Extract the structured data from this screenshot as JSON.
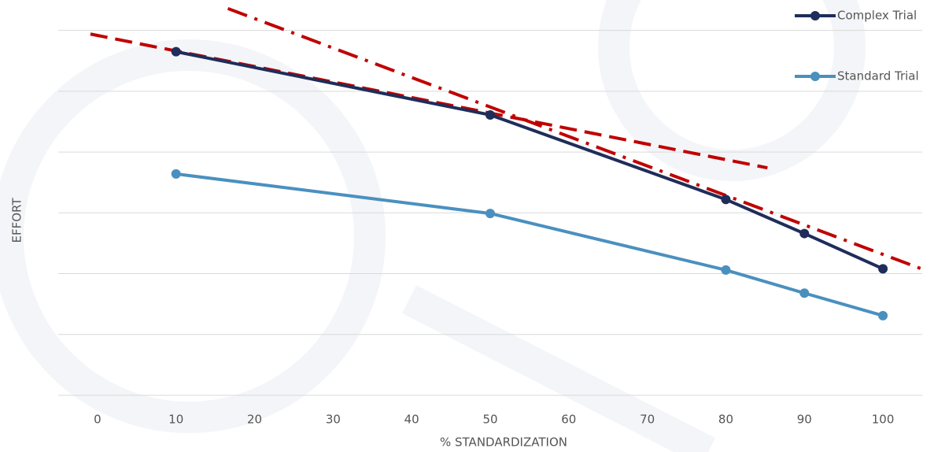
{
  "chart_data": {
    "type": "line",
    "x_label": "% STANDARDIZATION",
    "y_label": "EFFORT",
    "xlim": [
      -5,
      105
    ],
    "xticks": [
      0,
      10,
      20,
      30,
      40,
      50,
      60,
      70,
      80,
      90,
      100
    ],
    "ylim": [
      0,
      6.5
    ],
    "yticks": [
      0,
      1,
      2,
      3,
      4,
      5,
      6
    ],
    "show_ytick_labels": false,
    "grid": true,
    "legend": "top-right",
    "series": [
      {
        "name": "Complex Trial",
        "color": "#1f2d5a",
        "x": [
          10,
          50,
          80,
          90,
          100
        ],
        "values": [
          5.65,
          4.61,
          3.22,
          2.66,
          2.08
        ]
      },
      {
        "name": "Standard Trial",
        "color": "#4a90bf",
        "x": [
          10,
          50,
          80,
          90,
          100
        ],
        "values": [
          3.64,
          2.99,
          2.06,
          1.68,
          1.31
        ]
      }
    ],
    "trendlines": [
      {
        "color": "#c00000",
        "dash": "dash",
        "x": [
          -0.9,
          85.3
        ],
        "values": [
          5.94,
          3.74
        ]
      },
      {
        "color": "#c00000",
        "dash": "dashdot",
        "x": [
          16.6,
          105.3
        ],
        "values": [
          6.36,
          2.06
        ]
      }
    ]
  }
}
